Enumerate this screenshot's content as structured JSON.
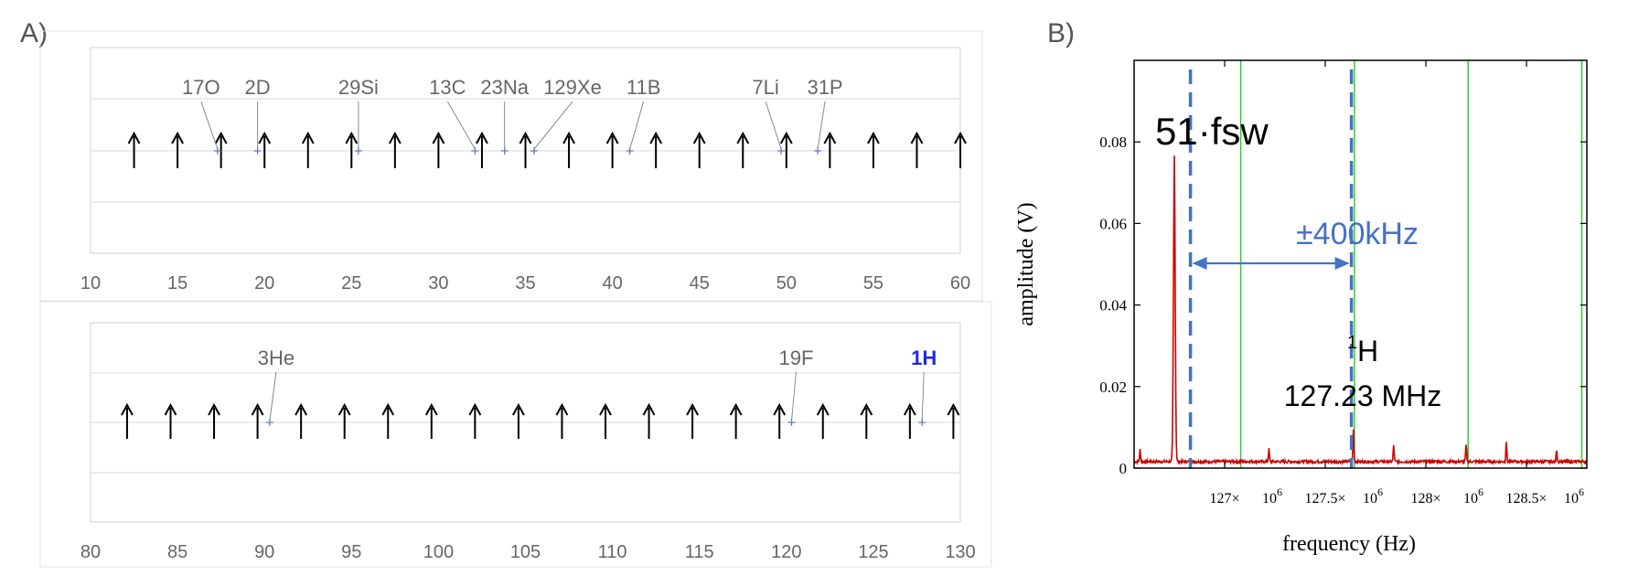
{
  "panel_labels": {
    "a": "A)",
    "b": "B)"
  },
  "colors": {
    "arrow": "#000000",
    "marker": "#5b7bb5",
    "leader": "#8a8a8a",
    "grid": "#d9d9d9",
    "highlight_label": "#1f2bd6",
    "spectrum": "#cc0000",
    "gridline_green": "#22cc22",
    "dashed_blue": "#4472c4"
  },
  "chart_data": [
    {
      "type": "scatter",
      "panel": "A-top",
      "xlim": [
        10,
        60
      ],
      "xticks": [
        "10",
        "15",
        "20",
        "25",
        "30",
        "35",
        "40",
        "45",
        "50",
        "55",
        "60"
      ],
      "grid": true,
      "arrows_x": [
        12.5,
        15,
        17.5,
        20,
        22.5,
        25,
        27.5,
        30,
        32.5,
        35,
        37.5,
        40,
        42.5,
        45,
        47.5,
        50,
        52.5,
        55,
        57.5,
        60
      ],
      "markers": [
        {
          "label": "17O",
          "x": 17.3
        },
        {
          "label": "2D",
          "x": 19.6
        },
        {
          "label": "29Si",
          "x": 25.4
        },
        {
          "label": "13C",
          "x": 32.1
        },
        {
          "label": "23Na",
          "x": 33.8
        },
        {
          "label": "129Xe",
          "x": 35.5
        },
        {
          "label": "11B",
          "x": 41.0
        },
        {
          "label": "7Li",
          "x": 49.7
        },
        {
          "label": "31P",
          "x": 51.8
        }
      ]
    },
    {
      "type": "scatter",
      "panel": "A-bottom",
      "xlim": [
        80,
        130
      ],
      "xticks": [
        "80",
        "85",
        "90",
        "95",
        "100",
        "105",
        "110",
        "115",
        "120",
        "125",
        "130"
      ],
      "grid": true,
      "arrows_x": [
        82.1,
        84.6,
        87.1,
        89.6,
        92.1,
        94.6,
        97.1,
        99.6,
        102.1,
        104.6,
        107.1,
        109.6,
        112.1,
        114.6,
        117.1,
        119.6,
        122.1,
        124.6,
        127.1,
        129.6
      ],
      "markers": [
        {
          "label": "3He",
          "x": 90.3
        },
        {
          "label": "19F",
          "x": 120.3
        },
        {
          "label": "1H",
          "x": 127.8,
          "highlight": true
        }
      ]
    },
    {
      "type": "line",
      "panel": "B",
      "xlabel": "frequency (Hz)",
      "ylabel": "amplitude (V)",
      "xlim": [
        126.55,
        128.8
      ],
      "ylim": [
        0,
        0.1
      ],
      "yticks": [
        "0",
        "0.02",
        "0.04",
        "0.06",
        "0.08"
      ],
      "xticks": [
        {
          "value": 127,
          "label": "127×",
          "exp": "10",
          "sup": "6"
        },
        {
          "value": 127.5,
          "label": "127.5×",
          "exp": "10",
          "sup": "6"
        },
        {
          "value": 128,
          "label": "128×",
          "exp": "10",
          "sup": "6"
        },
        {
          "value": 128.5,
          "label": "128.5×",
          "exp": "10",
          "sup": "6"
        }
      ],
      "green_lines_x": [
        127.08,
        127.645,
        128.21,
        128.775
      ],
      "dashed_lines_x": [
        126.83,
        127.23,
        127.63
      ],
      "spectrum_peaks": [
        {
          "x": 126.58,
          "y": 0.003
        },
        {
          "x": 126.75,
          "y": 0.075
        },
        {
          "x": 127.22,
          "y": 0.003
        },
        {
          "x": 127.64,
          "y": 0.008
        },
        {
          "x": 127.84,
          "y": 0.004
        },
        {
          "x": 128.2,
          "y": 0.004
        },
        {
          "x": 128.4,
          "y": 0.005
        },
        {
          "x": 128.65,
          "y": 0.003
        }
      ],
      "annotations": {
        "harmonic": "51·fsw",
        "range": "±400kHz",
        "nucleus_sup": "1",
        "nucleus": "H",
        "frequency": "127.23 MHz"
      }
    }
  ]
}
